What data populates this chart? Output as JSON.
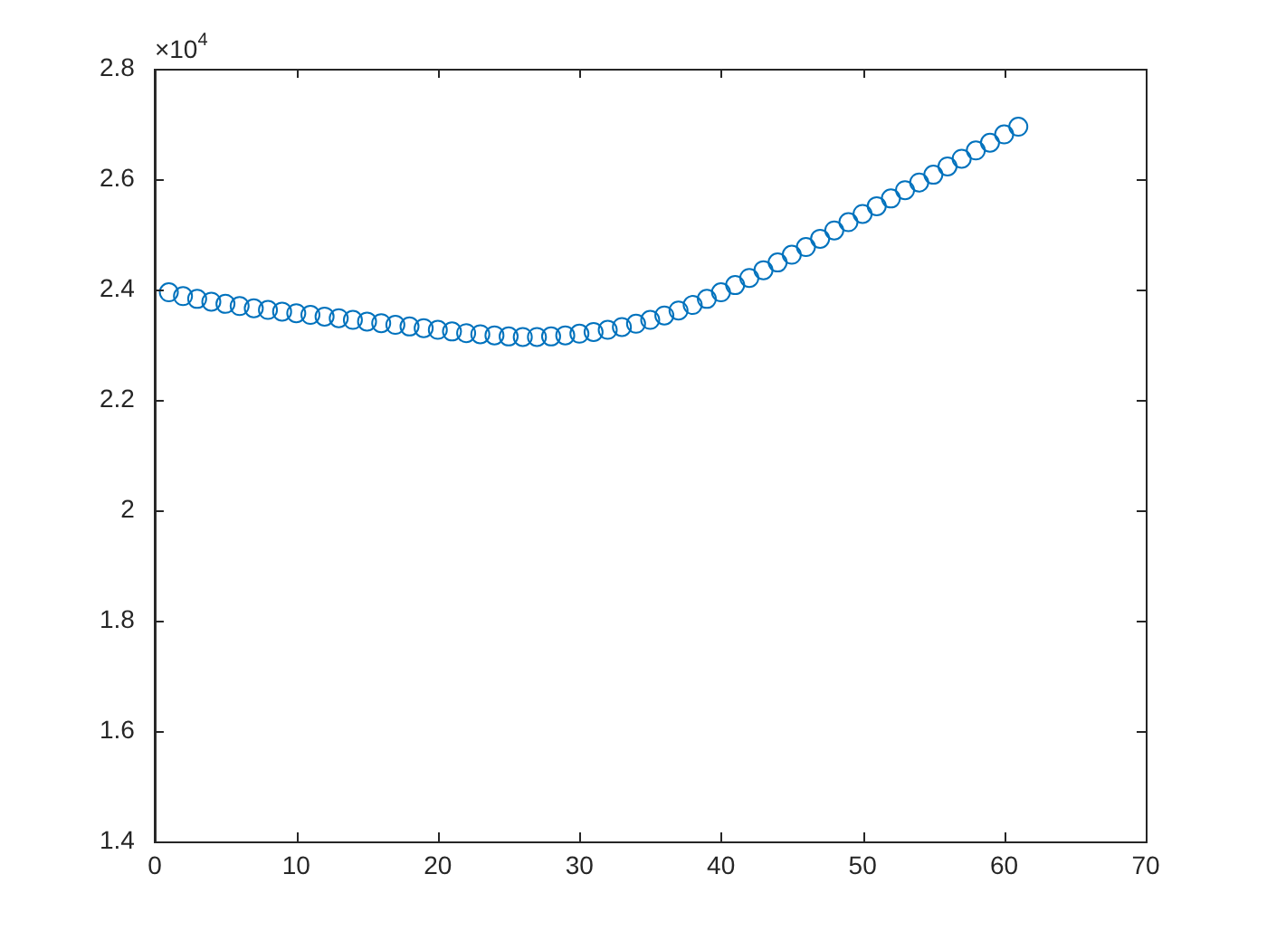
{
  "chart_data": {
    "type": "scatter",
    "marker": "circle",
    "x": [
      1,
      2,
      3,
      4,
      5,
      6,
      7,
      8,
      9,
      10,
      11,
      12,
      13,
      14,
      15,
      16,
      17,
      18,
      19,
      20,
      21,
      22,
      23,
      24,
      25,
      26,
      27,
      28,
      29,
      30,
      31,
      32,
      33,
      34,
      35,
      36,
      37,
      38,
      39,
      40,
      41,
      42,
      43,
      44,
      45,
      46,
      47,
      48,
      49,
      50,
      51,
      52,
      53,
      54,
      55,
      56,
      57,
      58,
      59,
      60,
      61
    ],
    "series": [
      {
        "color": "#0072bd",
        "values": [
          2.395,
          2.388,
          2.383,
          2.378,
          2.374,
          2.37,
          2.366,
          2.363,
          2.36,
          2.357,
          2.354,
          2.351,
          2.348,
          2.345,
          2.342,
          2.339,
          2.336,
          2.333,
          2.33,
          2.327,
          2.324,
          2.321,
          2.319,
          2.317,
          2.315,
          2.314,
          2.314,
          2.315,
          2.317,
          2.32,
          2.323,
          2.327,
          2.332,
          2.338,
          2.345,
          2.353,
          2.362,
          2.372,
          2.383,
          2.395,
          2.408,
          2.421,
          2.435,
          2.449,
          2.463,
          2.477,
          2.492,
          2.507,
          2.522,
          2.537,
          2.551,
          2.565,
          2.58,
          2.594,
          2.608,
          2.623,
          2.637,
          2.652,
          2.666,
          2.681,
          2.695
        ]
      }
    ],
    "xlim": [
      0,
      70
    ],
    "xticks": [
      0,
      10,
      20,
      30,
      40,
      50,
      60,
      70
    ],
    "ylim": [
      1.4,
      2.8
    ],
    "yticks": [
      1.4,
      1.6,
      1.8,
      2,
      2.2,
      2.4,
      2.6,
      2.8
    ],
    "annotations": [
      "×10$^{4}$"
    ]
  }
}
